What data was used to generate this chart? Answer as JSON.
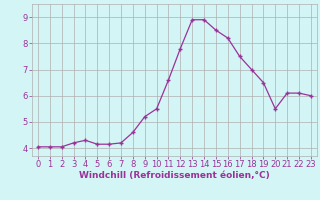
{
  "x": [
    0,
    1,
    2,
    3,
    4,
    5,
    6,
    7,
    8,
    9,
    10,
    11,
    12,
    13,
    14,
    15,
    16,
    17,
    18,
    19,
    20,
    21,
    22,
    23
  ],
  "y": [
    4.05,
    4.05,
    4.05,
    4.2,
    4.3,
    4.15,
    4.15,
    4.2,
    4.6,
    5.2,
    5.5,
    6.6,
    7.8,
    8.9,
    8.9,
    8.5,
    8.2,
    7.5,
    7.0,
    6.5,
    5.5,
    6.1,
    6.1,
    6.0
  ],
  "line_color": "#993399",
  "marker": "+",
  "marker_size": 3,
  "bg_color": "#d4f5f5",
  "grid_color": "#b0b0b0",
  "xlabel": "Windchill (Refroidissement éolien,°C)",
  "xlabel_color": "#993399",
  "xlabel_fontsize": 6.5,
  "ylabel_ticks": [
    4,
    5,
    6,
    7,
    8,
    9
  ],
  "ylim": [
    3.7,
    9.5
  ],
  "xlim": [
    -0.5,
    23.5
  ],
  "tick_fontsize": 6,
  "tick_color": "#993399"
}
